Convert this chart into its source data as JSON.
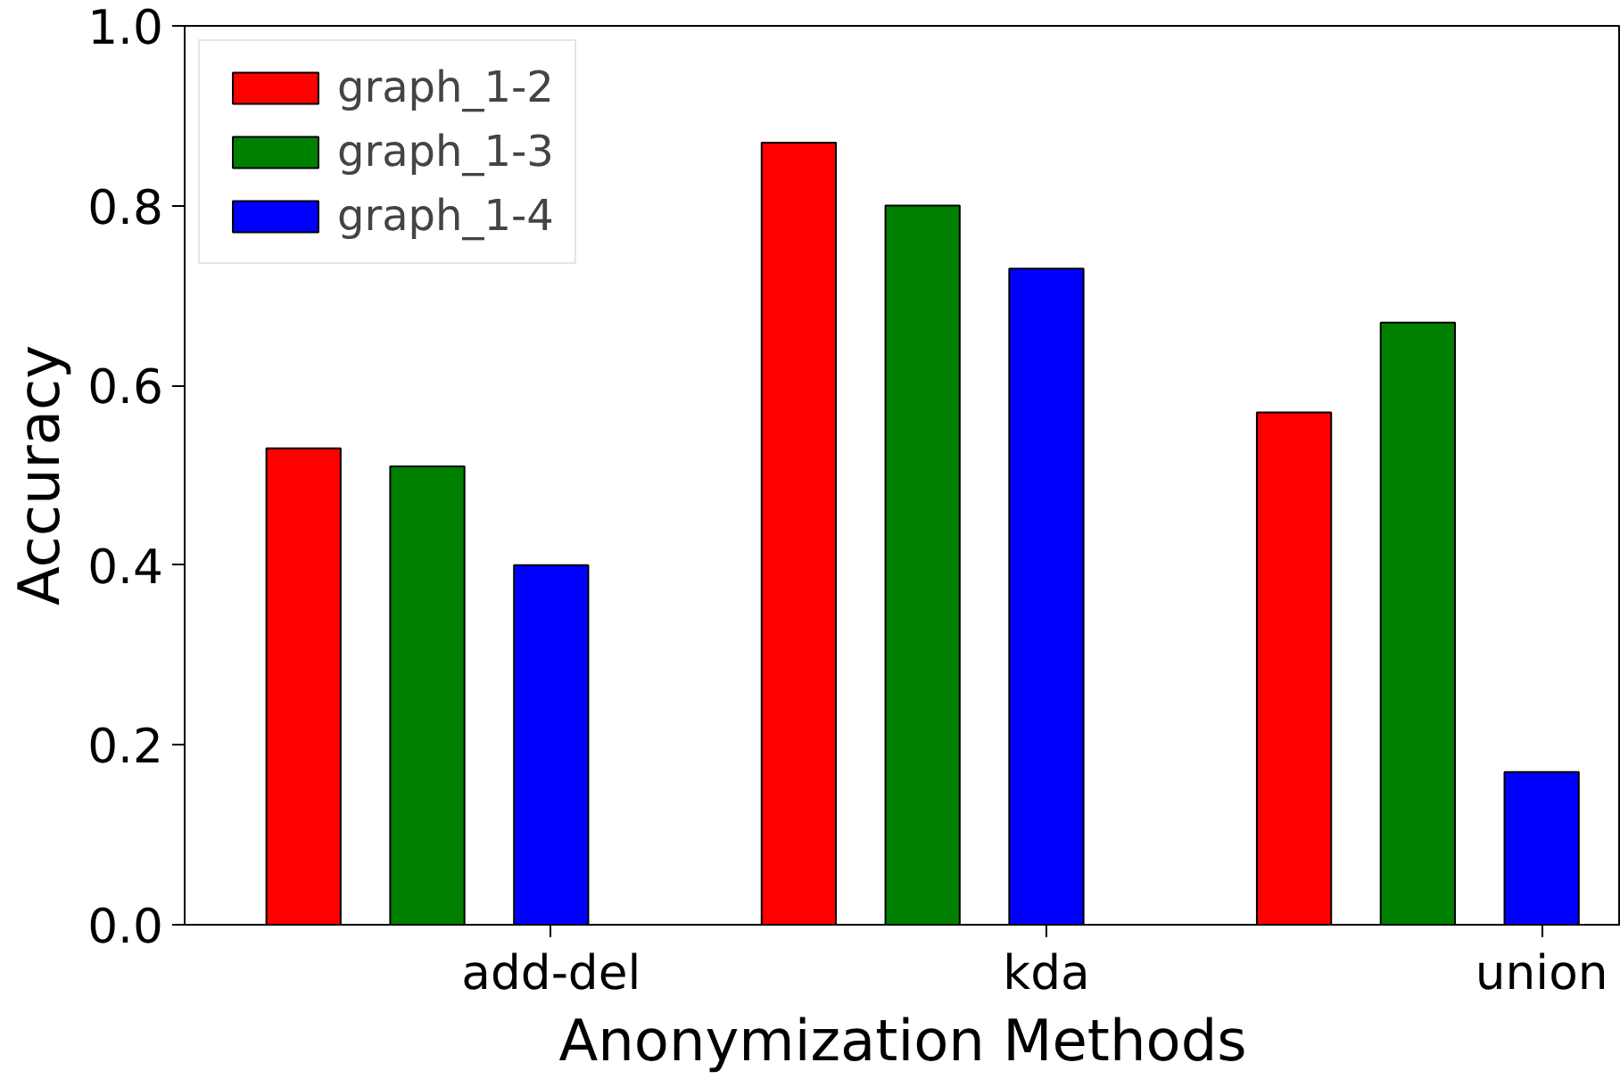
{
  "chart_data": {
    "type": "bar",
    "xlabel": "Anonymization Methods",
    "ylabel": "Accuracy",
    "categories": [
      "add-del",
      "kda",
      "union"
    ],
    "series": [
      {
        "name": "graph_1-2",
        "color": "#ff0000",
        "values": [
          0.53,
          0.87,
          0.57
        ]
      },
      {
        "name": "graph_1-3",
        "color": "#008000",
        "values": [
          0.51,
          0.8,
          0.67
        ]
      },
      {
        "name": "graph_1-4",
        "color": "#0000ff",
        "values": [
          0.4,
          0.73,
          0.17
        ]
      }
    ],
    "ylim": [
      0,
      1
    ],
    "yticks": [
      {
        "value": 0,
        "label": "0.0"
      },
      {
        "value": 0.2,
        "label": "0.2"
      },
      {
        "value": 0.4,
        "label": "0.4"
      },
      {
        "value": 0.6,
        "label": "0.6"
      },
      {
        "value": 0.8,
        "label": "0.8"
      },
      {
        "value": 1,
        "label": "1.0"
      }
    ],
    "grid": false,
    "legend": "top left"
  }
}
